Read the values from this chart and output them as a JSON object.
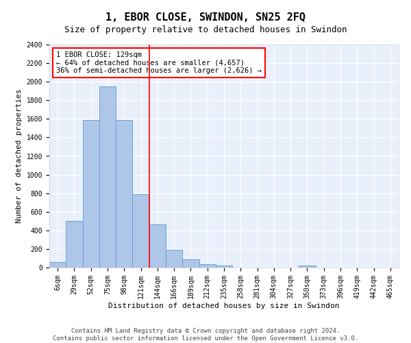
{
  "title": "1, EBOR CLOSE, SWINDON, SN25 2FQ",
  "subtitle": "Size of property relative to detached houses in Swindon",
  "xlabel": "Distribution of detached houses by size in Swindon",
  "ylabel": "Number of detached properties",
  "categories": [
    "6sqm",
    "29sqm",
    "52sqm",
    "75sqm",
    "98sqm",
    "121sqm",
    "144sqm",
    "166sqm",
    "189sqm",
    "212sqm",
    "235sqm",
    "258sqm",
    "281sqm",
    "304sqm",
    "327sqm",
    "350sqm",
    "373sqm",
    "396sqm",
    "419sqm",
    "442sqm",
    "465sqm"
  ],
  "values": [
    60,
    500,
    1590,
    1950,
    1590,
    790,
    465,
    195,
    90,
    35,
    25,
    0,
    0,
    0,
    0,
    20,
    0,
    0,
    0,
    0,
    0
  ],
  "bar_color": "#aec6e8",
  "bar_edge_color": "#5b9bd5",
  "vline_x": 5.5,
  "vline_color": "red",
  "annotation_text": "1 EBOR CLOSE: 129sqm\n← 64% of detached houses are smaller (4,657)\n36% of semi-detached houses are larger (2,626) →",
  "annotation_box_color": "white",
  "annotation_box_edge_color": "red",
  "ylim": [
    0,
    2400
  ],
  "yticks": [
    0,
    200,
    400,
    600,
    800,
    1000,
    1200,
    1400,
    1600,
    1800,
    2000,
    2200,
    2400
  ],
  "footer1": "Contains HM Land Registry data © Crown copyright and database right 2024.",
  "footer2": "Contains public sector information licensed under the Open Government Licence v3.0.",
  "bg_color": "#eaf0fb",
  "grid_color": "white",
  "title_fontsize": 11,
  "subtitle_fontsize": 9,
  "label_fontsize": 8,
  "tick_fontsize": 7,
  "footer_fontsize": 6.5,
  "annotation_fontsize": 7.5
}
